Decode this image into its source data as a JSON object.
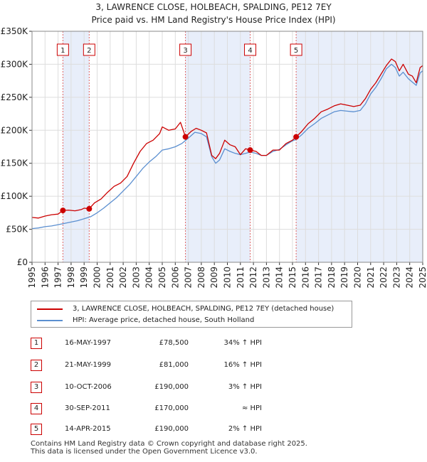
{
  "title_line1": "3, LAWRENCE CLOSE, HOLBEACH, SPALDING, PE12 7EY",
  "title_line2": "Price paid vs. HM Land Registry's House Price Index (HPI)",
  "legend": {
    "property_label": "3, LAWRENCE CLOSE, HOLBEACH, SPALDING, PE12 7EY (detached house)",
    "hpi_label": "HPI: Average price, detached house, South Holland"
  },
  "colors": {
    "property": "#cc0000",
    "hpi": "#5b8fd0",
    "shade": "#e8eefa",
    "marker_border": "#cc0000"
  },
  "sales": [
    {
      "num": "1",
      "date": "16-MAY-1997",
      "price": "£78,500",
      "hpi": "34% ↑ HPI"
    },
    {
      "num": "2",
      "date": "21-MAY-1999",
      "price": "£81,000",
      "hpi": "16% ↑ HPI"
    },
    {
      "num": "3",
      "date": "10-OCT-2006",
      "price": "£190,000",
      "hpi": "3% ↑ HPI"
    },
    {
      "num": "4",
      "date": "30-SEP-2011",
      "price": "£170,000",
      "hpi": "≈ HPI"
    },
    {
      "num": "5",
      "date": "14-APR-2015",
      "price": "£190,000",
      "hpi": "2% ↑ HPI"
    }
  ],
  "footer_line1": "Contains HM Land Registry data © Crown copyright and database right 2025.",
  "footer_line2": "This data is licensed under the Open Government Licence v3.0.",
  "chart_data": {
    "type": "line",
    "title": "3, LAWRENCE CLOSE, HOLBEACH, SPALDING, PE12 7EY",
    "subtitle": "Price paid vs. HM Land Registry's House Price Index (HPI)",
    "xlim": [
      1995,
      2025
    ],
    "ylim": [
      0,
      350000
    ],
    "x_ticks": [
      "1995",
      "1996",
      "1997",
      "1998",
      "1999",
      "2000",
      "2001",
      "2002",
      "2003",
      "2004",
      "2005",
      "2006",
      "2007",
      "2008",
      "2009",
      "2010",
      "2011",
      "2012",
      "2013",
      "2014",
      "2015",
      "2016",
      "2017",
      "2018",
      "2019",
      "2020",
      "2021",
      "2022",
      "2023",
      "2024",
      "2025"
    ],
    "y_ticks": [
      {
        "value": 0,
        "label": "£0"
      },
      {
        "value": 50000,
        "label": "£50K"
      },
      {
        "value": 100000,
        "label": "£100K"
      },
      {
        "value": 150000,
        "label": "£150K"
      },
      {
        "value": 200000,
        "label": "£200K"
      },
      {
        "value": 250000,
        "label": "£250K"
      },
      {
        "value": 300000,
        "label": "£300K"
      },
      {
        "value": 350000,
        "label": "£350K"
      }
    ],
    "grid": true,
    "shaded_ranges": [
      [
        1997.37,
        1999.39
      ],
      [
        2006.78,
        2011.75
      ],
      [
        2015.28,
        2025.0
      ]
    ],
    "sale_points": [
      {
        "label": "1",
        "x": 1997.37,
        "y": 78500
      },
      {
        "label": "2",
        "x": 1999.39,
        "y": 81000
      },
      {
        "label": "3",
        "x": 2006.78,
        "y": 190000
      },
      {
        "label": "4",
        "x": 2011.75,
        "y": 170000
      },
      {
        "label": "5",
        "x": 2015.28,
        "y": 190000
      }
    ],
    "series": [
      {
        "name": "3, LAWRENCE CLOSE, HOLBEACH, SPALDING, PE12 7EY (detached house)",
        "x": [
          1995.0,
          1995.5,
          1996.0,
          1996.5,
          1997.0,
          1997.37,
          1997.8,
          1998.3,
          1998.8,
          1999.0,
          1999.39,
          1999.8,
          2000.3,
          2000.8,
          2001.3,
          2001.8,
          2002.3,
          2002.8,
          2003.3,
          2003.8,
          2004.3,
          2004.8,
          2005.0,
          2005.5,
          2006.0,
          2006.4,
          2006.78,
          2007.2,
          2007.6,
          2008.0,
          2008.4,
          2008.8,
          2009.1,
          2009.4,
          2009.8,
          2010.2,
          2010.6,
          2011.0,
          2011.4,
          2011.75,
          2012.2,
          2012.6,
          2013.0,
          2013.5,
          2014.0,
          2014.5,
          2015.0,
          2015.28,
          2015.7,
          2016.2,
          2016.7,
          2017.2,
          2017.7,
          2018.2,
          2018.7,
          2019.2,
          2019.7,
          2020.2,
          2020.6,
          2021.0,
          2021.4,
          2021.8,
          2022.2,
          2022.6,
          2022.9,
          2023.2,
          2023.5,
          2023.9,
          2024.2,
          2024.5,
          2024.8,
          2025.0
        ],
        "y": [
          68000,
          67000,
          70000,
          72000,
          73000,
          78500,
          79000,
          78000,
          80000,
          82000,
          81000,
          90000,
          96000,
          106000,
          115000,
          120000,
          130000,
          150000,
          168000,
          180000,
          185000,
          195000,
          205000,
          200000,
          202000,
          212000,
          190000,
          198000,
          203000,
          200000,
          196000,
          162000,
          157000,
          165000,
          185000,
          178000,
          175000,
          163000,
          172000,
          170000,
          168000,
          162000,
          162000,
          170000,
          170000,
          180000,
          185000,
          190000,
          198000,
          210000,
          218000,
          228000,
          232000,
          237000,
          240000,
          238000,
          236000,
          238000,
          248000,
          262000,
          272000,
          285000,
          298000,
          308000,
          304000,
          290000,
          300000,
          285000,
          282000,
          272000,
          295000,
          298000
        ]
      },
      {
        "name": "HPI: Average price, detached house, South Holland",
        "x": [
          1995.0,
          1995.5,
          1996.0,
          1996.5,
          1997.0,
          1997.5,
          1998.0,
          1998.5,
          1999.0,
          1999.5,
          2000.0,
          2000.5,
          2001.0,
          2001.5,
          2002.0,
          2002.5,
          2003.0,
          2003.5,
          2004.0,
          2004.5,
          2005.0,
          2005.5,
          2006.0,
          2006.5,
          2007.0,
          2007.5,
          2008.0,
          2008.4,
          2008.8,
          2009.1,
          2009.4,
          2009.8,
          2010.2,
          2010.6,
          2011.0,
          2011.4,
          2011.75,
          2012.2,
          2012.6,
          2013.0,
          2013.5,
          2014.0,
          2014.5,
          2015.0,
          2015.28,
          2015.7,
          2016.2,
          2016.7,
          2017.2,
          2017.7,
          2018.2,
          2018.7,
          2019.2,
          2019.7,
          2020.2,
          2020.6,
          2021.0,
          2021.4,
          2021.8,
          2022.2,
          2022.6,
          2022.9,
          2023.2,
          2023.5,
          2023.9,
          2024.2,
          2024.5,
          2024.8,
          2025.0
        ],
        "y": [
          51000,
          52000,
          54000,
          55000,
          57000,
          59000,
          61000,
          63000,
          66000,
          69000,
          75000,
          82000,
          90000,
          98000,
          108000,
          118000,
          130000,
          142000,
          152000,
          160000,
          170000,
          172000,
          175000,
          180000,
          188000,
          197000,
          195000,
          190000,
          160000,
          150000,
          155000,
          172000,
          168000,
          165000,
          163000,
          165000,
          167000,
          165000,
          162000,
          162000,
          168000,
          171000,
          178000,
          184000,
          186000,
          193000,
          203000,
          210000,
          218000,
          223000,
          228000,
          230000,
          229000,
          228000,
          230000,
          240000,
          255000,
          265000,
          278000,
          293000,
          300000,
          295000,
          282000,
          288000,
          278000,
          273000,
          268000,
          287000,
          290000
        ]
      }
    ]
  }
}
